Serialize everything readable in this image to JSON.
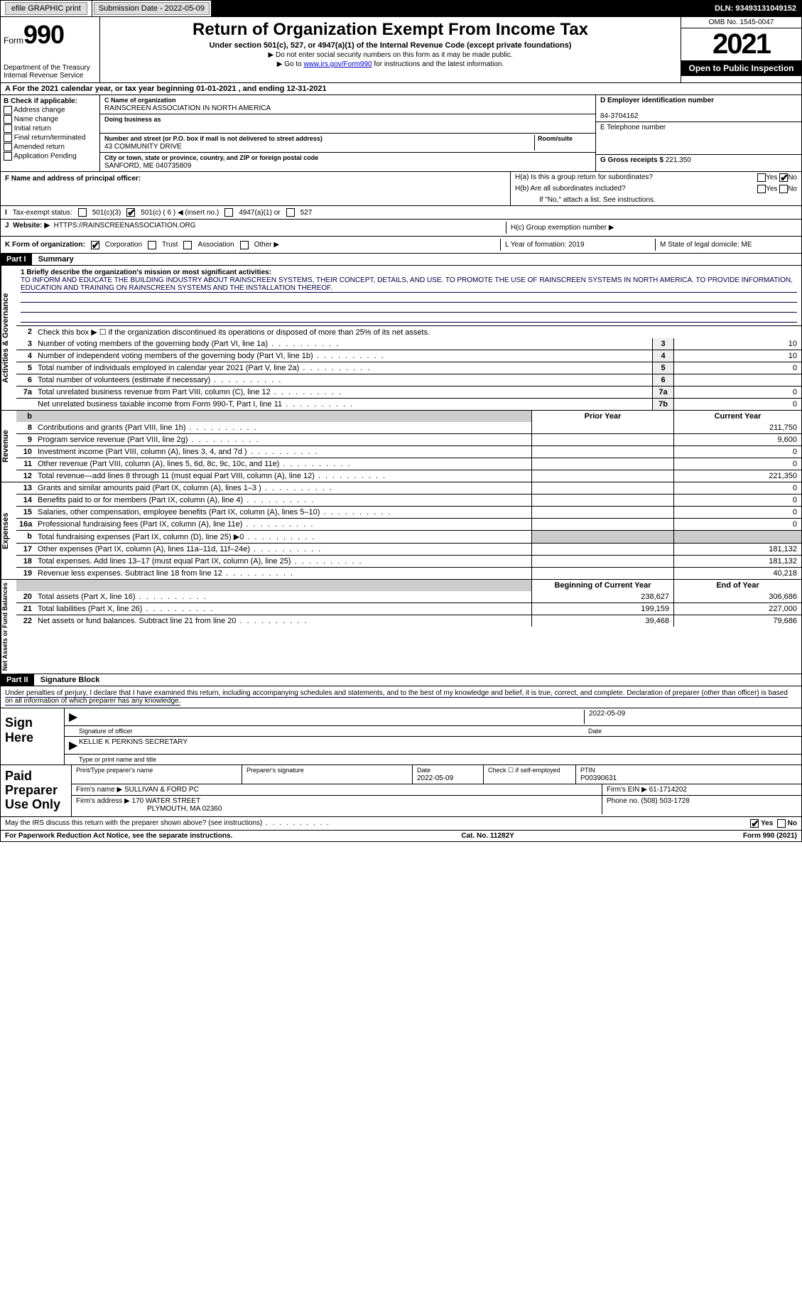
{
  "topbar": {
    "efile_label": "efile GRAPHIC print",
    "submission_label": "Submission Date - 2022-05-09",
    "dln_label": "DLN: 93493131049152"
  },
  "header": {
    "form_label": "Form",
    "form_number": "990",
    "dept": "Department of the Treasury",
    "irs": "Internal Revenue Service",
    "title": "Return of Organization Exempt From Income Tax",
    "subtitle": "Under section 501(c), 527, or 4947(a)(1) of the Internal Revenue Code (except private foundations)",
    "note1": "▶ Do not enter social security numbers on this form as it may be made public.",
    "note2_pre": "▶ Go to ",
    "note2_link": "www.irs.gov/Form990",
    "note2_post": " for instructions and the latest information.",
    "omb": "OMB No. 1545-0047",
    "year": "2021",
    "open_pub": "Open to Public Inspection"
  },
  "sectA": {
    "taxyear": "A For the 2021 calendar year, or tax year beginning 01-01-2021    , and ending 12-31-2021",
    "B_label": "B Check if applicable:",
    "B_opts": [
      "Address change",
      "Name change",
      "Initial return",
      "Final return/terminated",
      "Amended return",
      "Application Pending"
    ],
    "C_name_label": "C Name of organization",
    "C_name": "RAINSCREEN ASSOCIATION IN NORTH AMERICA",
    "C_dba_label": "Doing business as",
    "C_addr_label": "Number and street (or P.O. box if mail is not delivered to street address)",
    "C_room_label": "Room/suite",
    "C_addr": "43 COMMUNITY DRIVE",
    "C_city_label": "City or town, state or province, country, and ZIP or foreign postal code",
    "C_city": "SANFORD, ME  040735809",
    "D_label": "D Employer identification number",
    "D_val": "84-3704162",
    "E_label": "E Telephone number",
    "G_label": "G Gross receipts $",
    "G_val": "221,350",
    "F_label": "F  Name and address of principal officer:",
    "H_a": "H(a)  Is this a group return for subordinates?",
    "H_b": "H(b)  Are all subordinates included?",
    "H_b_note": "If \"No,\" attach a list. See instructions.",
    "H_c": "H(c)  Group exemption number ▶",
    "yes": "Yes",
    "no": "No",
    "I_label": "Tax-exempt status:",
    "I_501c3": "501(c)(3)",
    "I_501c": "501(c) ( 6 ) ◀ (insert no.)",
    "I_4947": "4947(a)(1) or",
    "I_527": "527",
    "J_label": "Website: ▶",
    "J_val": "HTTPS://RAINSCREENASSOCIATION.ORG",
    "K_label": "K Form of organization:",
    "K_opts": [
      "Corporation",
      "Trust",
      "Association",
      "Other ▶"
    ],
    "L_label": "L Year of formation: 2019",
    "M_label": "M State of legal domicile: ME"
  },
  "partI": {
    "hdr": "Part I",
    "title": "Summary",
    "side_labels": [
      "Activities & Governance",
      "Revenue",
      "Expenses",
      "Net Assets or Fund Balances"
    ],
    "line1_label": "1  Briefly describe the organization's mission or most significant activities:",
    "mission": "TO INFORM AND EDUCATE THE BUILDING INDUSTRY ABOUT RAINSCREEN SYSTEMS, THEIR CONCEPT, DETAILS, AND USE. TO PROMOTE THE USE OF RAINSCREEN SYSTEMS IN NORTH AMERICA. TO PROVIDE INFORMATION, EDUCATION AND TRAINING ON RAINSCREEN SYSTEMS AND THE INSTALLATION THEREOF.",
    "line2": "Check this box ▶ ☐  if the organization discontinued its operations or disposed of more than 25% of its net assets.",
    "gov_rows": [
      {
        "n": "3",
        "t": "Number of voting members of the governing body (Part VI, line 1a)",
        "box": "3",
        "v": "10"
      },
      {
        "n": "4",
        "t": "Number of independent voting members of the governing body (Part VI, line 1b)",
        "box": "4",
        "v": "10"
      },
      {
        "n": "5",
        "t": "Total number of individuals employed in calendar year 2021 (Part V, line 2a)",
        "box": "5",
        "v": "0"
      },
      {
        "n": "6",
        "t": "Total number of volunteers (estimate if necessary)",
        "box": "6",
        "v": ""
      },
      {
        "n": "7a",
        "t": "Total unrelated business revenue from Part VIII, column (C), line 12",
        "box": "7a",
        "v": "0"
      },
      {
        "n": "",
        "t": "Net unrelated business taxable income from Form 990-T, Part I, line 11",
        "box": "7b",
        "v": "0"
      }
    ],
    "col_prior": "Prior Year",
    "col_current": "Current Year",
    "rev_rows": [
      {
        "n": "8",
        "t": "Contributions and grants (Part VIII, line 1h)",
        "p": "",
        "c": "211,750"
      },
      {
        "n": "9",
        "t": "Program service revenue (Part VIII, line 2g)",
        "p": "",
        "c": "9,600"
      },
      {
        "n": "10",
        "t": "Investment income (Part VIII, column (A), lines 3, 4, and 7d )",
        "p": "",
        "c": "0"
      },
      {
        "n": "11",
        "t": "Other revenue (Part VIII, column (A), lines 5, 6d, 8c, 9c, 10c, and 11e)",
        "p": "",
        "c": "0"
      },
      {
        "n": "12",
        "t": "Total revenue—add lines 8 through 11 (must equal Part VIII, column (A), line 12)",
        "p": "",
        "c": "221,350"
      }
    ],
    "exp_rows": [
      {
        "n": "13",
        "t": "Grants and similar amounts paid (Part IX, column (A), lines 1–3 )",
        "p": "",
        "c": "0"
      },
      {
        "n": "14",
        "t": "Benefits paid to or for members (Part IX, column (A), line 4)",
        "p": "",
        "c": "0"
      },
      {
        "n": "15",
        "t": "Salaries, other compensation, employee benefits (Part IX, column (A), lines 5–10)",
        "p": "",
        "c": "0"
      },
      {
        "n": "16a",
        "t": "Professional fundraising fees (Part IX, column (A), line 11e)",
        "p": "",
        "c": "0"
      },
      {
        "n": "b",
        "t": "Total fundraising expenses (Part IX, column (D), line 25) ▶0",
        "p": "grey",
        "c": "grey"
      },
      {
        "n": "17",
        "t": "Other expenses (Part IX, column (A), lines 11a–11d, 11f–24e)",
        "p": "",
        "c": "181,132"
      },
      {
        "n": "18",
        "t": "Total expenses. Add lines 13–17 (must equal Part IX, column (A), line 25)",
        "p": "",
        "c": "181,132"
      },
      {
        "n": "19",
        "t": "Revenue less expenses. Subtract line 18 from line 12",
        "p": "",
        "c": "40,218"
      }
    ],
    "col_begin": "Beginning of Current Year",
    "col_end": "End of Year",
    "net_rows": [
      {
        "n": "20",
        "t": "Total assets (Part X, line 16)",
        "p": "238,627",
        "c": "306,686"
      },
      {
        "n": "21",
        "t": "Total liabilities (Part X, line 26)",
        "p": "199,159",
        "c": "227,000"
      },
      {
        "n": "22",
        "t": "Net assets or fund balances. Subtract line 21 from line 20",
        "p": "39,468",
        "c": "79,686"
      }
    ]
  },
  "partII": {
    "hdr": "Part II",
    "title": "Signature Block",
    "decl": "Under penalties of perjury, I declare that I have examined this return, including accompanying schedules and statements, and to the best of my knowledge and belief, it is true, correct, and complete. Declaration of preparer (other than officer) is based on all information of which preparer has any knowledge.",
    "sign_here": "Sign Here",
    "sig_officer": "Signature of officer",
    "sig_date": "2022-05-09",
    "date_lbl": "Date",
    "sig_name": "KELLIE K PERKINS  SECRETARY",
    "sig_name_lbl": "Type or print name and title",
    "paid_prep": "Paid Preparer Use Only",
    "prep_name_lbl": "Print/Type preparer's name",
    "prep_sig_lbl": "Preparer's signature",
    "prep_date_lbl": "Date",
    "prep_date": "2022-05-09",
    "prep_check_lbl": "Check ☐ if self-employed",
    "ptin_lbl": "PTIN",
    "ptin": "P00390631",
    "firm_name_lbl": "Firm's name    ▶",
    "firm_name": "SULLIVAN & FORD PC",
    "firm_ein_lbl": "Firm's EIN ▶",
    "firm_ein": "61-1714202",
    "firm_addr_lbl": "Firm's address ▶",
    "firm_addr1": "170 WATER STREET",
    "firm_addr2": "PLYMOUTH, MA  02360",
    "phone_lbl": "Phone no.",
    "phone": "(508) 503-1728",
    "discuss": "May the IRS discuss this return with the preparer shown above? (see instructions)"
  },
  "footer": {
    "left": "For Paperwork Reduction Act Notice, see the separate instructions.",
    "mid": "Cat. No. 11282Y",
    "right": "Form 990 (2021)"
  }
}
